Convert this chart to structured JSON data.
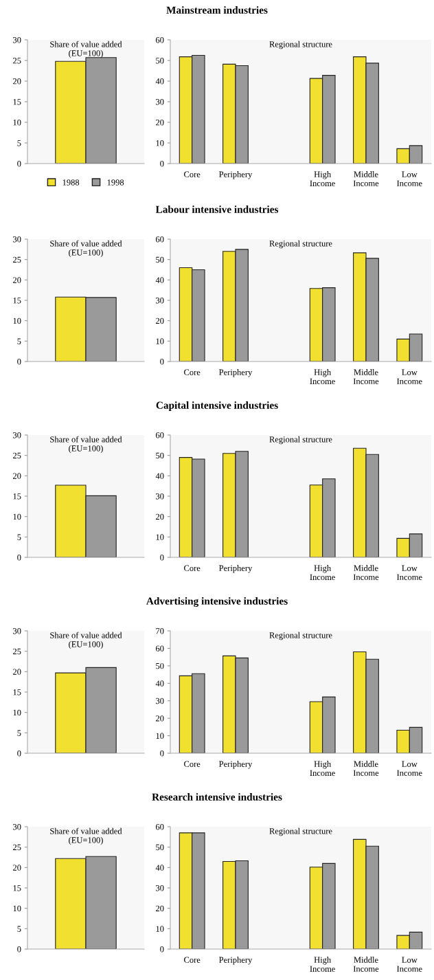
{
  "chart_data": [
    {
      "type": "bar",
      "title": "Share of value added\n(EU=100)",
      "categories": [
        null
      ],
      "ylim": [
        0,
        30
      ],
      "yticks": [
        0,
        5,
        10,
        15,
        20,
        25,
        30
      ],
      "grid": false,
      "legend": "bottom",
      "series": [
        {
          "name": "1988",
          "color": "#f2e030",
          "values": [
            24.8
          ]
        },
        {
          "name": "1998",
          "color": "#9a9a9a",
          "values": [
            25.7
          ]
        }
      ]
    },
    {
      "type": "bar",
      "subtitle": "Mainstream industries",
      "title": "Regional structure",
      "categories": [
        "Core",
        "Periphery",
        null,
        "High\nIncome",
        "Middle\nIncome",
        "Low\nIncome"
      ],
      "ylim": [
        0,
        60
      ],
      "yticks": [
        0,
        10,
        20,
        30,
        40,
        50,
        60
      ],
      "grid": false,
      "series": [
        {
          "color": "#f2e030",
          "values": [
            51.8,
            48.2,
            null,
            41.3,
            51.8,
            7.2
          ]
        },
        {
          "color": "#9a9a9a",
          "values": [
            52.5,
            47.5,
            null,
            42.8,
            48.7,
            8.7
          ]
        }
      ]
    },
    {
      "type": "bar",
      "title": "Share of value added\n(EU=100)",
      "categories": [
        null
      ],
      "ylim": [
        0,
        30
      ],
      "yticks": [
        0,
        5,
        10,
        15,
        20,
        25,
        30
      ],
      "grid": false,
      "series": [
        {
          "color": "#f2e030",
          "values": [
            15.8
          ]
        },
        {
          "color": "#9a9a9a",
          "values": [
            15.7
          ]
        }
      ]
    },
    {
      "type": "bar",
      "subtitle": "Labour intensive industries",
      "title": "Regional structure",
      "categories": [
        "Core",
        "Periphery",
        null,
        "High\nIncome",
        "Middle\nIncome",
        "Low\nIncome"
      ],
      "ylim": [
        0,
        60
      ],
      "yticks": [
        0,
        10,
        20,
        30,
        40,
        50,
        60
      ],
      "grid": false,
      "series": [
        {
          "color": "#f2e030",
          "values": [
            46.0,
            54.0,
            null,
            35.8,
            53.3,
            11.0
          ]
        },
        {
          "color": "#9a9a9a",
          "values": [
            45.0,
            55.0,
            null,
            36.2,
            50.6,
            13.5
          ]
        }
      ]
    },
    {
      "type": "bar",
      "title": "Share of value added\n(EU=100)",
      "categories": [
        null
      ],
      "ylim": [
        0,
        30
      ],
      "yticks": [
        0,
        5,
        10,
        15,
        20,
        25,
        30
      ],
      "grid": false,
      "series": [
        {
          "color": "#f2e030",
          "values": [
            17.7
          ]
        },
        {
          "color": "#9a9a9a",
          "values": [
            15.1
          ]
        }
      ]
    },
    {
      "type": "bar",
      "subtitle": "Capital intensive industries",
      "title": "Regional structure",
      "categories": [
        "Core",
        "Periphery",
        null,
        "High\nIncome",
        "Middle\nIncome",
        "Low\nIncome"
      ],
      "ylim": [
        0,
        60
      ],
      "yticks": [
        0,
        10,
        20,
        30,
        40,
        50,
        60
      ],
      "grid": false,
      "series": [
        {
          "color": "#f2e030",
          "values": [
            49.0,
            51.0,
            null,
            35.5,
            53.5,
            9.3
          ]
        },
        {
          "color": "#9a9a9a",
          "values": [
            48.2,
            52.0,
            null,
            38.5,
            50.5,
            11.5
          ]
        }
      ]
    },
    {
      "type": "bar",
      "title": "Share of value added\n(EU=100)",
      "categories": [
        null
      ],
      "ylim": [
        0,
        30
      ],
      "yticks": [
        0,
        5,
        10,
        15,
        20,
        25,
        30
      ],
      "grid": false,
      "series": [
        {
          "color": "#f2e030",
          "values": [
            19.7
          ]
        },
        {
          "color": "#9a9a9a",
          "values": [
            21.0
          ]
        }
      ]
    },
    {
      "type": "bar",
      "subtitle": "Advertising intensive industries",
      "title": "Regional structure",
      "categories": [
        "Core",
        "Periphery",
        null,
        "High\nIncome",
        "Middle\nIncome",
        "Low\nIncome"
      ],
      "ylim": [
        0,
        70
      ],
      "yticks": [
        0,
        10,
        20,
        30,
        40,
        50,
        60,
        70
      ],
      "grid": false,
      "series": [
        {
          "color": "#f2e030",
          "values": [
            44.3,
            55.7,
            null,
            29.5,
            58.0,
            13.2
          ]
        },
        {
          "color": "#9a9a9a",
          "values": [
            45.5,
            54.5,
            null,
            32.2,
            53.8,
            14.8
          ]
        }
      ]
    },
    {
      "type": "bar",
      "title": "Share of value added\n(EU=100)",
      "categories": [
        null
      ],
      "ylim": [
        0,
        30
      ],
      "yticks": [
        0,
        5,
        10,
        15,
        20,
        25,
        30
      ],
      "grid": false,
      "series": [
        {
          "color": "#f2e030",
          "values": [
            22.2
          ]
        },
        {
          "color": "#9a9a9a",
          "values": [
            22.7
          ]
        }
      ]
    },
    {
      "type": "bar",
      "subtitle": "Research intensive industries",
      "title": "Regional structure",
      "categories": [
        "Core",
        "Periphery",
        null,
        "High\nIncome",
        "Middle\nIncome",
        "Low\nIncome"
      ],
      "ylim": [
        0,
        60
      ],
      "yticks": [
        0,
        10,
        20,
        30,
        40,
        50,
        60
      ],
      "grid": false,
      "series": [
        {
          "color": "#f2e030",
          "values": [
            57.0,
            43.0,
            null,
            40.2,
            53.8,
            6.7
          ]
        },
        {
          "color": "#9a9a9a",
          "values": [
            57.0,
            43.3,
            null,
            42.0,
            50.5,
            8.3
          ]
        }
      ]
    }
  ]
}
